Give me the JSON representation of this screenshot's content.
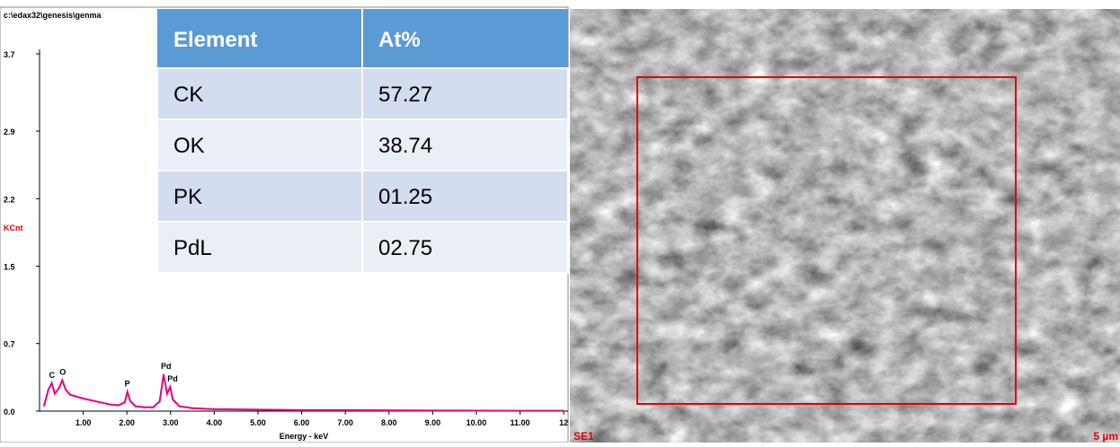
{
  "chart_data": {
    "type": "line",
    "title": "c:\\edax32\\genesis\\genma",
    "xlabel": "Energy - keV",
    "ylabel": "KCnt",
    "x": [
      0.1,
      0.2,
      0.28,
      0.35,
      0.45,
      0.52,
      0.6,
      0.7,
      0.85,
      1.0,
      1.2,
      1.4,
      1.6,
      1.8,
      1.95,
      2.01,
      2.08,
      2.2,
      2.4,
      2.6,
      2.75,
      2.84,
      2.92,
      2.99,
      3.05,
      3.2,
      3.5,
      4,
      5,
      6,
      7,
      8,
      9,
      10,
      11,
      12
    ],
    "series": [
      {
        "color": "#e6007e",
        "values": [
          0.05,
          0.22,
          0.29,
          0.18,
          0.24,
          0.32,
          0.22,
          0.17,
          0.15,
          0.13,
          0.11,
          0.09,
          0.07,
          0.06,
          0.09,
          0.2,
          0.1,
          0.05,
          0.04,
          0.04,
          0.1,
          0.38,
          0.18,
          0.25,
          0.12,
          0.05,
          0.03,
          0.02,
          0.015,
          0.01,
          0.01,
          0.008,
          0.006,
          0.005,
          0.004,
          0.003
        ]
      }
    ],
    "peak_labels": [
      {
        "label": "C",
        "x": 0.28,
        "y": 0.29
      },
      {
        "label": "O",
        "x": 0.52,
        "y": 0.32
      },
      {
        "label": "P",
        "x": 2.01,
        "y": 0.2
      },
      {
        "label": "Pd",
        "x": 2.84,
        "y": 0.38
      },
      {
        "label": "Pd",
        "x": 2.99,
        "y": 0.25
      }
    ],
    "xlim": [
      0,
      12.1
    ],
    "ylim": [
      0,
      3.7
    ],
    "xticks": [
      {
        "value": 1,
        "label": "1.00"
      },
      {
        "value": 2,
        "label": "2.00"
      },
      {
        "value": 3,
        "label": "3.00"
      },
      {
        "value": 4,
        "label": "4.00"
      },
      {
        "value": 5,
        "label": "5.00"
      },
      {
        "value": 6,
        "label": "6.00"
      },
      {
        "value": 7,
        "label": "7.00"
      },
      {
        "value": 8,
        "label": "8.00"
      },
      {
        "value": 9,
        "label": "9.00"
      },
      {
        "value": 10,
        "label": "10.00"
      },
      {
        "value": 11,
        "label": "11.00"
      },
      {
        "value": 12,
        "label": "12"
      }
    ],
    "yticks": [
      {
        "value": 0,
        "label": "0.0"
      },
      0.7,
      1.5,
      2.2,
      2.9,
      3.7
    ]
  },
  "table": {
    "header": [
      "Element",
      "At%"
    ],
    "rows": [
      [
        "CK",
        "57.27"
      ],
      [
        "OK",
        "38.74"
      ],
      [
        "PK",
        "01.25"
      ],
      [
        "PdL",
        "02.75"
      ]
    ]
  },
  "image": {
    "labels": [
      "SE1",
      "5 µm"
    ]
  }
}
